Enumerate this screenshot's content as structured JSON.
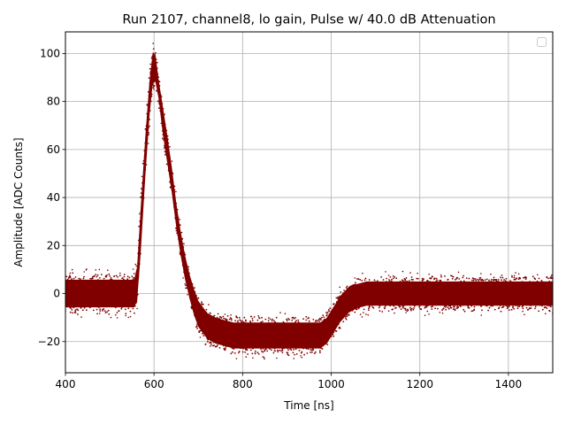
{
  "chart_data": {
    "type": "scatter",
    "title": "Run 2107, channel8, lo gain, Pulse w/ 40.0 dB Attenuation",
    "xlabel": "Time [ns]",
    "ylabel": "Amplitude [ADC Counts]",
    "xlim": [
      400,
      1500
    ],
    "ylim": [
      -33,
      109
    ],
    "xticks": [
      400,
      600,
      800,
      1000,
      1200,
      1400
    ],
    "yticks": [
      -20,
      0,
      20,
      40,
      60,
      80,
      100
    ],
    "grid": true,
    "legend": "top-right, empty",
    "series": [
      {
        "color": "#800000",
        "marker": "dots",
        "band": {
          "x": [
            400,
            555,
            562,
            570,
            580,
            590,
            597,
            603,
            610,
            620,
            630,
            640,
            650,
            660,
            670,
            680,
            690,
            700,
            720,
            740,
            760,
            780,
            800,
            850,
            900,
            950,
            975,
            990,
            1000,
            1010,
            1020,
            1030,
            1040,
            1050,
            1060,
            1080,
            1100,
            1200,
            1300,
            1400,
            1500
          ],
          "upper": [
            8,
            8,
            14,
            40,
            68,
            92,
            103,
            102,
            91,
            80,
            68,
            55,
            40,
            28,
            18,
            10,
            4,
            -1,
            -6,
            -8,
            -9,
            -10,
            -10,
            -10,
            -10,
            -10,
            -10,
            -8,
            -5,
            -2,
            1,
            3,
            5,
            6,
            6,
            7,
            7,
            7,
            7,
            7,
            7
          ],
          "lower": [
            -8,
            -8,
            -6,
            14,
            45,
            72,
            85,
            86,
            80,
            64,
            52,
            40,
            26,
            14,
            4,
            -4,
            -11,
            -16,
            -21,
            -23,
            -24,
            -25,
            -25,
            -25,
            -25,
            -25,
            -25,
            -23,
            -20,
            -17,
            -14,
            -12,
            -10,
            -9,
            -8,
            -7,
            -7,
            -7,
            -7,
            -7,
            -7
          ]
        }
      }
    ]
  }
}
